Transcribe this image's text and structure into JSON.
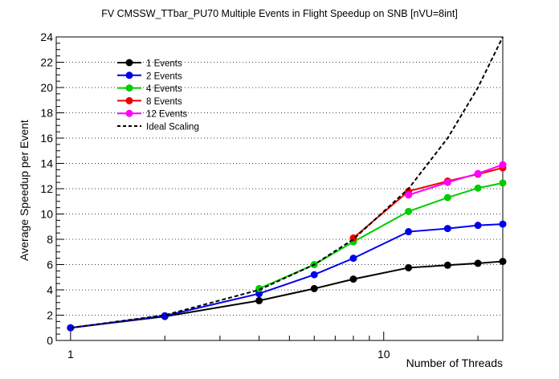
{
  "chart_data": {
    "type": "line",
    "title": "FV CMSSW_TTbar_PU70 Multiple Events in Flight Speedup on SNB [nVU=8int]",
    "xlabel": "Number of Threads",
    "ylabel": "Average Speedup per Event",
    "xscale": "log",
    "xlim": [
      0.9,
      24
    ],
    "ylim": [
      0,
      24
    ],
    "x_tick_labels": [
      "1",
      "10"
    ],
    "y_ticks": [
      0,
      2,
      4,
      6,
      8,
      10,
      12,
      14,
      16,
      18,
      20,
      22,
      24
    ],
    "grid": "horizontal",
    "legend_placement": "top-left",
    "series": [
      {
        "name": "1 Events",
        "color": "#000000",
        "style": "solid-markers",
        "x": [
          1,
          2,
          4,
          6,
          8,
          12,
          16,
          20,
          24
        ],
        "y": [
          1.0,
          1.9,
          3.15,
          4.1,
          4.85,
          5.75,
          5.95,
          6.1,
          6.25
        ]
      },
      {
        "name": "2 Events",
        "color": "#0000ee",
        "style": "solid-markers",
        "x": [
          1,
          2,
          4,
          6,
          8,
          12,
          16,
          20,
          24
        ],
        "y": [
          1.0,
          1.95,
          3.7,
          5.2,
          6.5,
          8.6,
          8.85,
          9.1,
          9.2
        ]
      },
      {
        "name": "4 Events",
        "color": "#00cc00",
        "style": "solid-markers",
        "x": [
          4,
          6,
          8,
          12,
          16,
          20,
          24
        ],
        "y": [
          4.1,
          6.0,
          7.8,
          10.2,
          11.3,
          12.05,
          12.45
        ]
      },
      {
        "name": "8 Events",
        "color": "#ee0000",
        "style": "solid-markers",
        "x": [
          8,
          12,
          16,
          20,
          24
        ],
        "y": [
          8.1,
          11.8,
          12.6,
          13.15,
          13.65
        ]
      },
      {
        "name": "12 Events",
        "color": "#ff00ff",
        "style": "solid-markers",
        "x": [
          12,
          16,
          20,
          24
        ],
        "y": [
          11.5,
          12.5,
          13.2,
          13.9
        ]
      },
      {
        "name": "Ideal Scaling",
        "color": "#000000",
        "style": "dashed",
        "x": [
          1,
          2,
          4,
          6,
          8,
          12,
          16,
          20,
          24
        ],
        "y": [
          1,
          2,
          4,
          6,
          8,
          12,
          16,
          20,
          24
        ]
      }
    ]
  }
}
